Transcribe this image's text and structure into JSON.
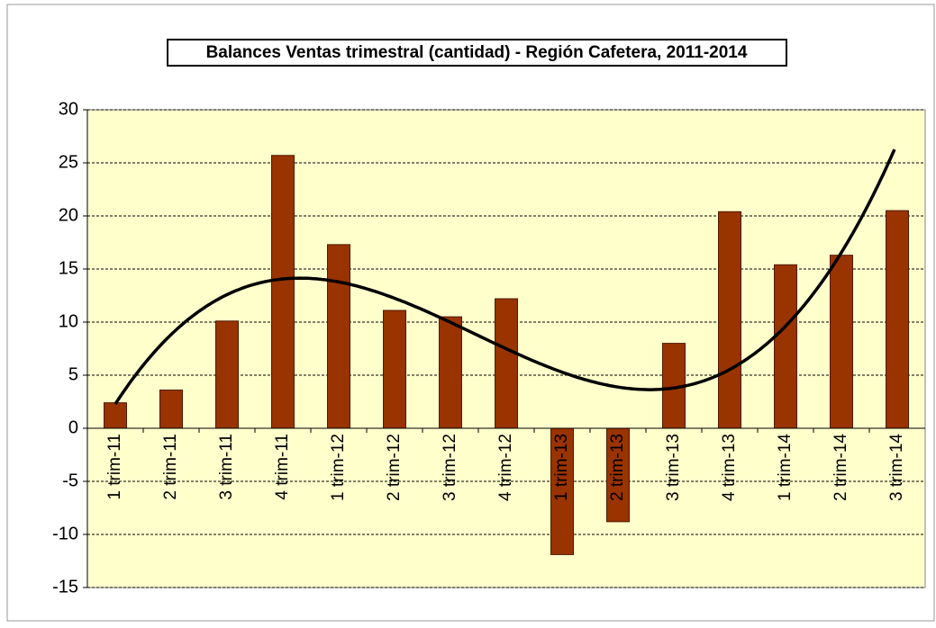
{
  "chart_data": {
    "type": "bar",
    "title": "Balances Ventas trimestral (cantidad) - Región Cafetera, 2011-2014",
    "categories": [
      "1 trim-11",
      "2 trim-11",
      "3 trim-11",
      "4 trim-11",
      "1 trim-12",
      "2 trim-12",
      "3 trim-12",
      "4 trim-12",
      "1 trim-13",
      "2 trim-13",
      "3 trim-13",
      "4 trim-13",
      "1 trim-14",
      "2 trim-14",
      "3 trim-14"
    ],
    "values": [
      2.4,
      3.6,
      10.1,
      25.7,
      17.3,
      11.1,
      10.5,
      12.2,
      -11.9,
      -8.8,
      8.0,
      20.4,
      15.4,
      16.3,
      20.5
    ],
    "color": "#993300",
    "ylim": [
      -15,
      30
    ],
    "yticks": [
      -15,
      -10,
      -5,
      0,
      5,
      10,
      15,
      20,
      25,
      30
    ],
    "grid": true,
    "trendline": {
      "type": "polynomial",
      "order": 3,
      "color": "#000000"
    }
  }
}
